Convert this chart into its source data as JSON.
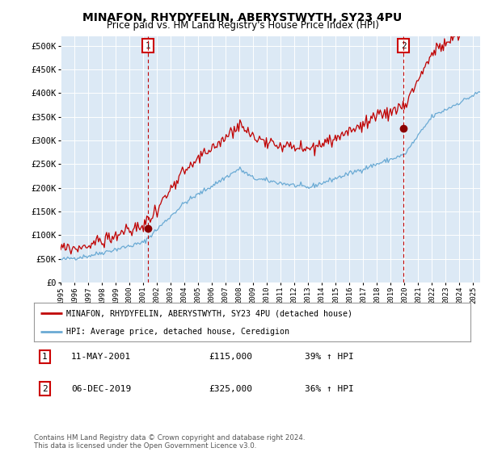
{
  "title": "MINAFON, RHYDYFELIN, ABERYSTWYTH, SY23 4PU",
  "subtitle": "Price paid vs. HM Land Registry's House Price Index (HPI)",
  "plot_bg_color": "#dce9f5",
  "red_line_label": "MINAFON, RHYDYFELIN, ABERYSTWYTH, SY23 4PU (detached house)",
  "blue_line_label": "HPI: Average price, detached house, Ceredigion",
  "sale1_date": "11-MAY-2001",
  "sale1_price": "£115,000",
  "sale1_pct": "39% ↑ HPI",
  "sale2_date": "06-DEC-2019",
  "sale2_price": "£325,000",
  "sale2_pct": "36% ↑ HPI",
  "footer": "Contains HM Land Registry data © Crown copyright and database right 2024.\nThis data is licensed under the Open Government Licence v3.0.",
  "xmin": 1995.0,
  "xmax": 2025.5,
  "ymin": 0,
  "ymax": 520000,
  "yticks": [
    0,
    50000,
    100000,
    150000,
    200000,
    250000,
    300000,
    350000,
    400000,
    450000,
    500000
  ],
  "sale1_x": 2001.36,
  "sale1_y": 115000,
  "sale2_x": 2019.92,
  "sale2_y": 325000
}
